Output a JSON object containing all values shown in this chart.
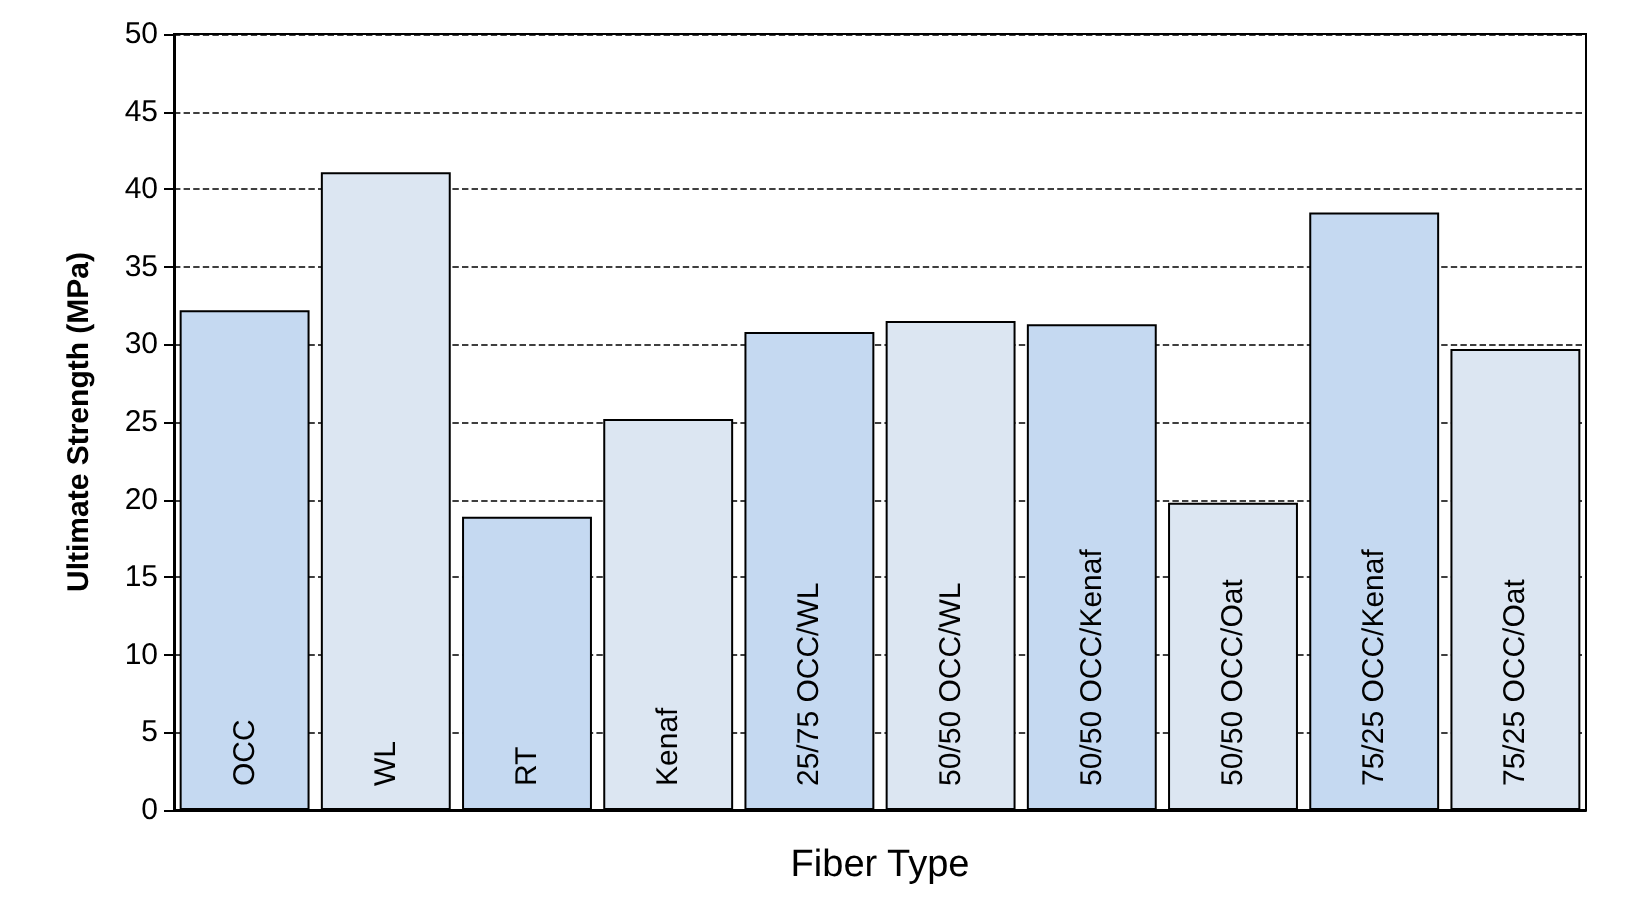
{
  "chart_data": {
    "type": "bar",
    "xlabel": "Fiber Type",
    "ylabel": "Ultimate Strength (MPa)",
    "categories": [
      "OCC",
      "WL",
      "RT",
      "Kenaf",
      "25/75 OCC/WL",
      "50/50 OCC/WL",
      "50/50 OCC/Kenaf",
      "50/50 OCC/Oat",
      "75/25 OCC/Kenaf",
      "75/25 OCC/Oat"
    ],
    "values": [
      32.2,
      41.1,
      18.9,
      25.2,
      30.8,
      31.5,
      31.3,
      19.8,
      38.5,
      29.7
    ],
    "colors": [
      "#c5d9f1",
      "#dce6f2",
      "#c5d9f1",
      "#dce6f2",
      "#c5d9f1",
      "#dce6f2",
      "#c5d9f1",
      "#dce6f2",
      "#c5d9f1",
      "#dce6f2"
    ],
    "ylim": [
      0,
      50
    ],
    "yticks": [
      0,
      5,
      10,
      15,
      20,
      25,
      30,
      35,
      40,
      45,
      50
    ],
    "grid": "y"
  }
}
